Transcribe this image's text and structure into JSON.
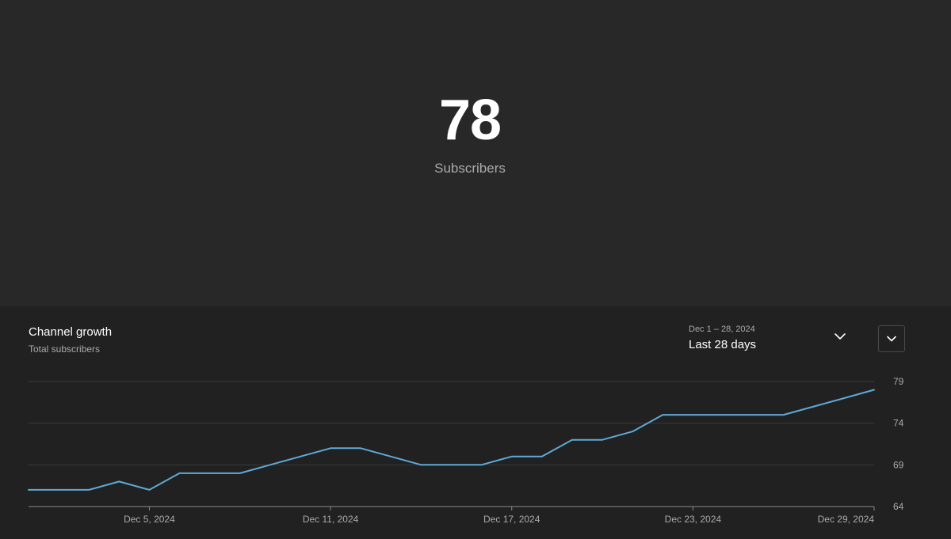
{
  "summary": {
    "count": "78",
    "label": "Subscribers"
  },
  "card": {
    "title": "Channel growth",
    "subtitle": "Total subscribers"
  },
  "range": {
    "dates": "Dec 1 – 28, 2024",
    "label": "Last 28 days"
  },
  "icons": {
    "range_chevron": "chevron-down-icon",
    "menu_chevron": "chevron-down-icon"
  },
  "colors": {
    "line": "#5fa9d8",
    "background": "#282828",
    "card_background": "#212121",
    "gridline": "#3a3a3a",
    "axis": "#8a8a8a"
  },
  "chart_data": {
    "type": "line",
    "title": "Channel growth",
    "subtitle": "Total subscribers",
    "xlabel": "",
    "ylabel": "",
    "x_start": "Dec 1, 2024",
    "x_end": "Dec 29, 2024",
    "x_ticks": [
      "Dec 5, 2024",
      "Dec 11, 2024",
      "Dec 17, 2024",
      "Dec 23, 2024",
      "Dec 29, 2024"
    ],
    "y_ticks": [
      64,
      69,
      74,
      79
    ],
    "ylim": [
      64,
      79
    ],
    "grid": true,
    "series": [
      {
        "values": [
          {
            "x": "Dec 1, 2024",
            "y": 66
          },
          {
            "x": "Dec 2, 2024",
            "y": 66
          },
          {
            "x": "Dec 3, 2024",
            "y": 66
          },
          {
            "x": "Dec 4, 2024",
            "y": 67
          },
          {
            "x": "Dec 5, 2024",
            "y": 66
          },
          {
            "x": "Dec 6, 2024",
            "y": 68
          },
          {
            "x": "Dec 7, 2024",
            "y": 68
          },
          {
            "x": "Dec 8, 2024",
            "y": 68
          },
          {
            "x": "Dec 9, 2024",
            "y": 69
          },
          {
            "x": "Dec 10, 2024",
            "y": 70
          },
          {
            "x": "Dec 11, 2024",
            "y": 71
          },
          {
            "x": "Dec 12, 2024",
            "y": 71
          },
          {
            "x": "Dec 13, 2024",
            "y": 70
          },
          {
            "x": "Dec 14, 2024",
            "y": 69
          },
          {
            "x": "Dec 15, 2024",
            "y": 69
          },
          {
            "x": "Dec 16, 2024",
            "y": 69
          },
          {
            "x": "Dec 17, 2024",
            "y": 70
          },
          {
            "x": "Dec 18, 2024",
            "y": 70
          },
          {
            "x": "Dec 19, 2024",
            "y": 72
          },
          {
            "x": "Dec 20, 2024",
            "y": 72
          },
          {
            "x": "Dec 21, 2024",
            "y": 73
          },
          {
            "x": "Dec 22, 2024",
            "y": 75
          },
          {
            "x": "Dec 23, 2024",
            "y": 75
          },
          {
            "x": "Dec 24, 2024",
            "y": 75
          },
          {
            "x": "Dec 25, 2024",
            "y": 75
          },
          {
            "x": "Dec 26, 2024",
            "y": 75
          },
          {
            "x": "Dec 27, 2024",
            "y": 76
          },
          {
            "x": "Dec 28, 2024",
            "y": 77
          },
          {
            "x": "Dec 29, 2024",
            "y": 78
          }
        ]
      }
    ]
  }
}
